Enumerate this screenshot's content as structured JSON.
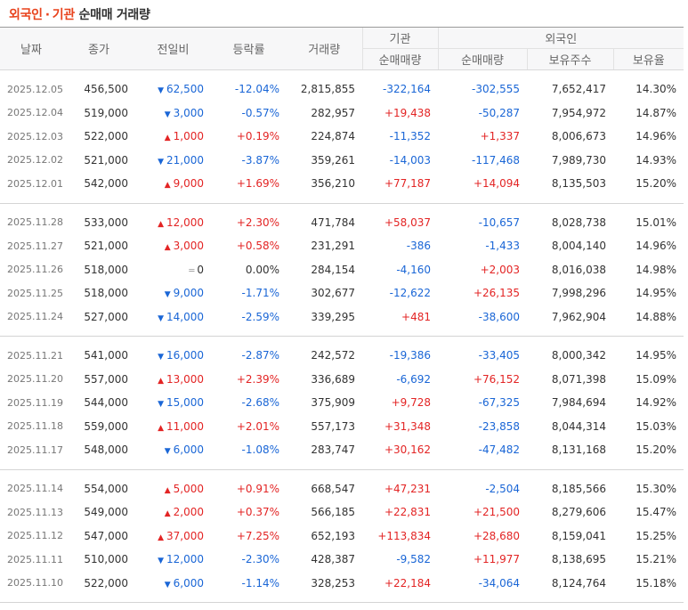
{
  "title": {
    "part1": "외국인",
    "dot": "·",
    "part2": "기관",
    "part3": "순매매 거래량"
  },
  "header": {
    "date": "날짜",
    "close": "종가",
    "change": "전일비",
    "rate": "등락률",
    "volume": "거래량",
    "inst": "기관",
    "inst_net": "순매매량",
    "foreign": "외국인",
    "foreign_net": "순매매량",
    "foreign_hold": "보유주수",
    "foreign_ratio": "보유율"
  },
  "colors": {
    "up": "#e32424",
    "down": "#1a66d6",
    "accent": "#e8421c"
  },
  "weeks": [
    [
      {
        "date": "2025.12.05",
        "close": "456,500",
        "dir": "down",
        "change": "62,500",
        "rate": "-12.04%",
        "volume": "2,815,855",
        "inst": "-322,164",
        "foreign": "-302,555",
        "hold": "7,652,417",
        "ratio": "14.30%"
      },
      {
        "date": "2025.12.04",
        "close": "519,000",
        "dir": "down",
        "change": "3,000",
        "rate": "-0.57%",
        "volume": "282,957",
        "inst": "+19,438",
        "foreign": "-50,287",
        "hold": "7,954,972",
        "ratio": "14.87%"
      },
      {
        "date": "2025.12.03",
        "close": "522,000",
        "dir": "up",
        "change": "1,000",
        "rate": "+0.19%",
        "volume": "224,874",
        "inst": "-11,352",
        "foreign": "+1,337",
        "hold": "8,006,673",
        "ratio": "14.96%"
      },
      {
        "date": "2025.12.02",
        "close": "521,000",
        "dir": "down",
        "change": "21,000",
        "rate": "-3.87%",
        "volume": "359,261",
        "inst": "-14,003",
        "foreign": "-117,468",
        "hold": "7,989,730",
        "ratio": "14.93%"
      },
      {
        "date": "2025.12.01",
        "close": "542,000",
        "dir": "up",
        "change": "9,000",
        "rate": "+1.69%",
        "volume": "356,210",
        "inst": "+77,187",
        "foreign": "+14,094",
        "hold": "8,135,503",
        "ratio": "15.20%"
      }
    ],
    [
      {
        "date": "2025.11.28",
        "close": "533,000",
        "dir": "up",
        "change": "12,000",
        "rate": "+2.30%",
        "volume": "471,784",
        "inst": "+58,037",
        "foreign": "-10,657",
        "hold": "8,028,738",
        "ratio": "15.01%"
      },
      {
        "date": "2025.11.27",
        "close": "521,000",
        "dir": "up",
        "change": "3,000",
        "rate": "+0.58%",
        "volume": "231,291",
        "inst": "-386",
        "foreign": "-1,433",
        "hold": "8,004,140",
        "ratio": "14.96%"
      },
      {
        "date": "2025.11.26",
        "close": "518,000",
        "dir": "flat",
        "change": "0",
        "rate": "0.00%",
        "volume": "284,154",
        "inst": "-4,160",
        "foreign": "+2,003",
        "hold": "8,016,038",
        "ratio": "14.98%"
      },
      {
        "date": "2025.11.25",
        "close": "518,000",
        "dir": "down",
        "change": "9,000",
        "rate": "-1.71%",
        "volume": "302,677",
        "inst": "-12,622",
        "foreign": "+26,135",
        "hold": "7,998,296",
        "ratio": "14.95%"
      },
      {
        "date": "2025.11.24",
        "close": "527,000",
        "dir": "down",
        "change": "14,000",
        "rate": "-2.59%",
        "volume": "339,295",
        "inst": "+481",
        "foreign": "-38,600",
        "hold": "7,962,904",
        "ratio": "14.88%"
      }
    ],
    [
      {
        "date": "2025.11.21",
        "close": "541,000",
        "dir": "down",
        "change": "16,000",
        "rate": "-2.87%",
        "volume": "242,572",
        "inst": "-19,386",
        "foreign": "-33,405",
        "hold": "8,000,342",
        "ratio": "14.95%"
      },
      {
        "date": "2025.11.20",
        "close": "557,000",
        "dir": "up",
        "change": "13,000",
        "rate": "+2.39%",
        "volume": "336,689",
        "inst": "-6,692",
        "foreign": "+76,152",
        "hold": "8,071,398",
        "ratio": "15.09%"
      },
      {
        "date": "2025.11.19",
        "close": "544,000",
        "dir": "down",
        "change": "15,000",
        "rate": "-2.68%",
        "volume": "375,909",
        "inst": "+9,728",
        "foreign": "-67,325",
        "hold": "7,984,694",
        "ratio": "14.92%"
      },
      {
        "date": "2025.11.18",
        "close": "559,000",
        "dir": "up",
        "change": "11,000",
        "rate": "+2.01%",
        "volume": "557,173",
        "inst": "+31,348",
        "foreign": "-23,858",
        "hold": "8,044,314",
        "ratio": "15.03%"
      },
      {
        "date": "2025.11.17",
        "close": "548,000",
        "dir": "down",
        "change": "6,000",
        "rate": "-1.08%",
        "volume": "283,747",
        "inst": "+30,162",
        "foreign": "-47,482",
        "hold": "8,131,168",
        "ratio": "15.20%"
      }
    ],
    [
      {
        "date": "2025.11.14",
        "close": "554,000",
        "dir": "up",
        "change": "5,000",
        "rate": "+0.91%",
        "volume": "668,547",
        "inst": "+47,231",
        "foreign": "-2,504",
        "hold": "8,185,566",
        "ratio": "15.30%"
      },
      {
        "date": "2025.11.13",
        "close": "549,000",
        "dir": "up",
        "change": "2,000",
        "rate": "+0.37%",
        "volume": "566,185",
        "inst": "+22,831",
        "foreign": "+21,500",
        "hold": "8,279,606",
        "ratio": "15.47%"
      },
      {
        "date": "2025.11.12",
        "close": "547,000",
        "dir": "up",
        "change": "37,000",
        "rate": "+7.25%",
        "volume": "652,193",
        "inst": "+113,834",
        "foreign": "+28,680",
        "hold": "8,159,041",
        "ratio": "15.25%"
      },
      {
        "date": "2025.11.11",
        "close": "510,000",
        "dir": "down",
        "change": "12,000",
        "rate": "-2.30%",
        "volume": "428,387",
        "inst": "-9,582",
        "foreign": "+11,977",
        "hold": "8,138,695",
        "ratio": "15.21%"
      },
      {
        "date": "2025.11.10",
        "close": "522,000",
        "dir": "down",
        "change": "6,000",
        "rate": "-1.14%",
        "volume": "328,253",
        "inst": "+22,184",
        "foreign": "-34,064",
        "hold": "8,124,764",
        "ratio": "15.18%"
      }
    ]
  ]
}
